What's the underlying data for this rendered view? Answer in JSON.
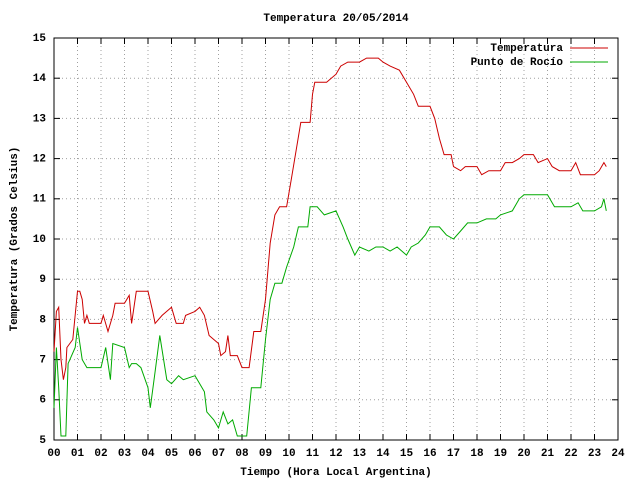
{
  "chart_data": {
    "type": "line",
    "title": "Temperatura 20/05/2014",
    "x_label": "Tiempo (Hora Local Argentina)",
    "y_label": "Temperatura (Grados Celsius)",
    "xlim": [
      0,
      24
    ],
    "ylim": [
      5,
      15
    ],
    "xticks": [
      {
        "value": 0,
        "label": "00"
      },
      {
        "value": 1,
        "label": "01"
      },
      {
        "value": 2,
        "label": "02"
      },
      {
        "value": 3,
        "label": "03"
      },
      {
        "value": 4,
        "label": "04"
      },
      {
        "value": 5,
        "label": "05"
      },
      {
        "value": 6,
        "label": "06"
      },
      {
        "value": 7,
        "label": "07"
      },
      {
        "value": 8,
        "label": "08"
      },
      {
        "value": 9,
        "label": "09"
      },
      10,
      11,
      12,
      13,
      14,
      15,
      16,
      17,
      18,
      19,
      20,
      21,
      22,
      23,
      24
    ],
    "yticks": [
      5,
      6,
      7,
      8,
      9,
      10,
      11,
      12,
      13,
      14,
      15
    ],
    "grid": true,
    "legend": "top-right",
    "series": [
      {
        "name": "Temperatura",
        "color": "#cc0000",
        "x": [
          0,
          0.1,
          0.2,
          0.3,
          0.4,
          0.5,
          0.55,
          0.8,
          1.0,
          1.1,
          1.2,
          1.3,
          1.4,
          1.5,
          2.0,
          2.1,
          2.3,
          2.5,
          2.6,
          3.0,
          3.2,
          3.3,
          3.5,
          4.0,
          4.2,
          4.3,
          4.6,
          5.0,
          5.2,
          5.5,
          5.6,
          6.0,
          6.2,
          6.4,
          6.6,
          6.8,
          7.0,
          7.1,
          7.3,
          7.4,
          7.5,
          7.8,
          8.0,
          8.3,
          8.5,
          8.8,
          9.0,
          9.2,
          9.4,
          9.6,
          9.9,
          10.1,
          10.3,
          10.5,
          10.9,
          11.0,
          11.1,
          11.3,
          11.6,
          12.0,
          12.2,
          12.5,
          13.0,
          13.3,
          13.8,
          14.0,
          14.3,
          14.7,
          15.0,
          15.3,
          15.5,
          16.0,
          16.2,
          16.4,
          16.6,
          16.9,
          17.0,
          17.3,
          17.5,
          18.0,
          18.2,
          18.5,
          19.0,
          19.2,
          19.5,
          19.8,
          20.0,
          20.4,
          20.6,
          21.0,
          21.2,
          21.5,
          22.0,
          22.2,
          22.4,
          23.0,
          23.2,
          23.4,
          23.5
        ],
        "values": [
          7.2,
          8.2,
          8.3,
          7.0,
          6.5,
          6.8,
          7.3,
          7.5,
          8.7,
          8.7,
          8.5,
          7.9,
          8.1,
          7.9,
          7.9,
          8.1,
          7.7,
          8.1,
          8.4,
          8.4,
          8.6,
          7.9,
          8.7,
          8.7,
          8.2,
          7.9,
          8.1,
          8.3,
          7.9,
          7.9,
          8.1,
          8.2,
          8.3,
          8.1,
          7.6,
          7.5,
          7.4,
          7.1,
          7.2,
          7.6,
          7.1,
          7.1,
          6.8,
          6.8,
          7.7,
          7.7,
          8.5,
          9.9,
          10.6,
          10.8,
          10.8,
          11.5,
          12.2,
          12.9,
          12.9,
          13.6,
          13.9,
          13.9,
          13.9,
          14.1,
          14.3,
          14.4,
          14.4,
          14.5,
          14.5,
          14.4,
          14.3,
          14.2,
          13.9,
          13.6,
          13.3,
          13.3,
          13.0,
          12.5,
          12.1,
          12.1,
          11.8,
          11.7,
          11.8,
          11.8,
          11.6,
          11.7,
          11.7,
          11.9,
          11.9,
          12.0,
          12.1,
          12.1,
          11.9,
          12.0,
          11.8,
          11.7,
          11.7,
          11.9,
          11.6,
          11.6,
          11.7,
          11.9,
          11.8
        ]
      },
      {
        "name": "Punto de Rocío",
        "color": "#00aa00",
        "x": [
          0,
          0.1,
          0.2,
          0.3,
          0.5,
          0.6,
          0.9,
          1.0,
          1.2,
          1.4,
          2.0,
          2.2,
          2.4,
          2.5,
          3.0,
          3.2,
          3.3,
          3.5,
          3.7,
          4.0,
          4.1,
          4.3,
          4.5,
          4.8,
          5.0,
          5.3,
          5.5,
          6.0,
          6.4,
          6.5,
          6.8,
          7.0,
          7.2,
          7.4,
          7.6,
          7.8,
          8.2,
          8.4,
          8.8,
          9.0,
          9.2,
          9.4,
          9.7,
          9.9,
          10.2,
          10.4,
          10.8,
          10.9,
          11.2,
          11.5,
          12.0,
          12.3,
          12.5,
          12.8,
          13.0,
          13.4,
          13.7,
          14.0,
          14.3,
          14.6,
          15.0,
          15.2,
          15.5,
          15.8,
          16.0,
          16.4,
          16.7,
          17.0,
          17.3,
          17.6,
          18.0,
          18.4,
          18.8,
          19.0,
          19.5,
          19.8,
          20.0,
          20.5,
          21.0,
          21.3,
          21.6,
          22.0,
          22.3,
          22.5,
          23.0,
          23.3,
          23.4,
          23.5
        ],
        "values": [
          5.8,
          7.3,
          6.3,
          5.1,
          5.1,
          6.9,
          7.3,
          7.8,
          7.0,
          6.8,
          6.8,
          7.3,
          6.5,
          7.4,
          7.3,
          6.8,
          6.9,
          6.9,
          6.8,
          6.3,
          5.8,
          6.7,
          7.6,
          6.5,
          6.4,
          6.6,
          6.5,
          6.6,
          6.2,
          5.7,
          5.5,
          5.3,
          5.7,
          5.4,
          5.5,
          5.1,
          5.1,
          6.3,
          6.3,
          7.5,
          8.5,
          8.9,
          8.9,
          9.3,
          9.8,
          10.3,
          10.3,
          10.8,
          10.8,
          10.6,
          10.7,
          10.3,
          10.0,
          9.6,
          9.8,
          9.7,
          9.8,
          9.8,
          9.7,
          9.8,
          9.6,
          9.8,
          9.9,
          10.1,
          10.3,
          10.3,
          10.1,
          10.0,
          10.2,
          10.4,
          10.4,
          10.5,
          10.5,
          10.6,
          10.7,
          11.0,
          11.1,
          11.1,
          11.1,
          10.8,
          10.8,
          10.8,
          10.9,
          10.7,
          10.7,
          10.8,
          11.0,
          10.7
        ]
      }
    ]
  }
}
